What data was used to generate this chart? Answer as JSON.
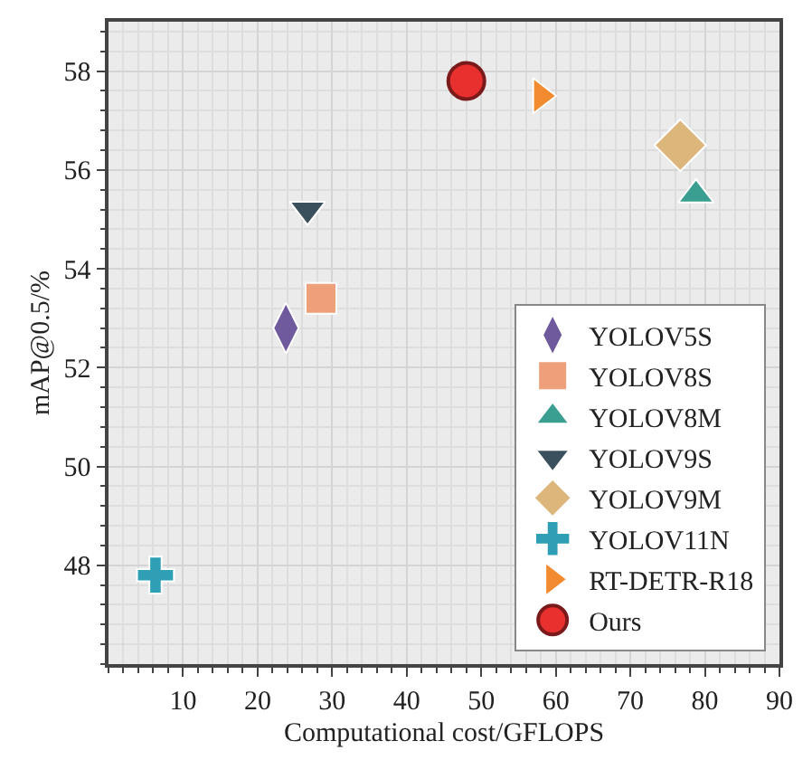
{
  "chart_data": {
    "type": "scatter",
    "xlabel": "Computational cost/GFLOPS",
    "ylabel": "mAP@0.5/%",
    "xlim": [
      0,
      90
    ],
    "xticks": [
      10,
      20,
      30,
      40,
      50,
      60,
      70,
      80,
      90
    ],
    "ylim": [
      46,
      59
    ],
    "yticks": [
      48,
      50,
      52,
      54,
      56,
      58
    ],
    "grid": true,
    "legend": "bottom right",
    "series": [
      {
        "name": "YOLOV5S",
        "color": "#6f5a9e",
        "marker": "diamond-tall",
        "x": [
          23.8
        ],
        "values": [
          52.8
        ]
      },
      {
        "name": "YOLOV8S",
        "color": "#eda07a",
        "marker": "square",
        "x": [
          28.5
        ],
        "values": [
          53.4
        ]
      },
      {
        "name": "YOLOV8M",
        "color": "#3a9e90",
        "marker": "triangle",
        "x": [
          78.8
        ],
        "values": [
          55.5
        ]
      },
      {
        "name": "YOLOV9S",
        "color": "#3a505c",
        "marker": "triangle-down",
        "x": [
          26.7
        ],
        "values": [
          55.2
        ]
      },
      {
        "name": "YOLOV9M",
        "color": "#dcb67a",
        "marker": "diamond",
        "x": [
          76.7
        ],
        "values": [
          56.5
        ]
      },
      {
        "name": "YOLOV11N",
        "color": "#2e9fb5",
        "marker": "cross",
        "x": [
          6.3
        ],
        "values": [
          47.8
        ]
      },
      {
        "name": "RT-DETR-R18",
        "color": "#f28a30",
        "marker": "triangle-right",
        "x": [
          58
        ],
        "values": [
          57.5
        ]
      },
      {
        "name": "Ours",
        "color": "#e8302e",
        "marker": "circle",
        "x": [
          48
        ],
        "values": [
          57.8
        ]
      }
    ]
  }
}
